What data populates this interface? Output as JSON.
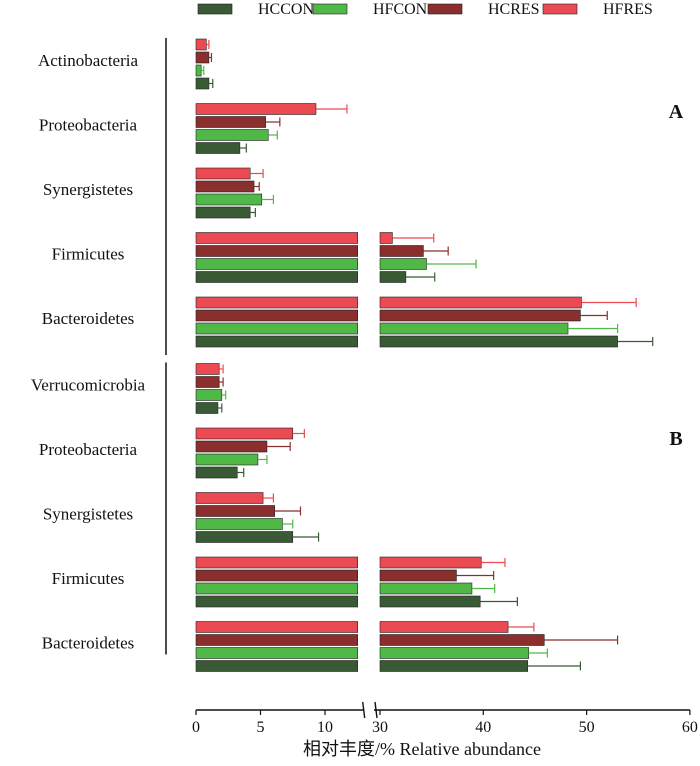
{
  "chart_data": {
    "type": "bar",
    "orientation": "horizontal",
    "xlabel": "相对丰度/%   Relative abundance",
    "x_axis_break": [
      13,
      30
    ],
    "x_ticks_left": [
      0,
      5,
      10
    ],
    "x_ticks_right": [
      30,
      40,
      50,
      60
    ],
    "legend": [
      "HCCON",
      "HFCON",
      "HCRES",
      "HFRES"
    ],
    "colors": {
      "HCCON": "#3a5a36",
      "HFCON": "#4fb847",
      "HCRES": "#8a2e2e",
      "HFRES": "#ec4a52"
    },
    "panels": [
      {
        "label": "A",
        "groups": [
          {
            "name": "Actinobacteria",
            "values": {
              "HCCON": 1.0,
              "HFCON": 0.4,
              "HCRES": 1.0,
              "HFRES": 0.8
            },
            "errors": {
              "HCCON": 0.3,
              "HFCON": 0.2,
              "HCRES": 0.2,
              "HFRES": 0.2
            }
          },
          {
            "name": "Proteobacteria",
            "values": {
              "HCCON": 3.4,
              "HFCON": 5.6,
              "HCRES": 5.4,
              "HFRES": 9.3
            },
            "errors": {
              "HCCON": 0.5,
              "HFCON": 0.7,
              "HCRES": 1.1,
              "HFRES": 2.4
            }
          },
          {
            "name": "Synergistetes",
            "values": {
              "HCCON": 4.2,
              "HFCON": 5.1,
              "HCRES": 4.5,
              "HFRES": 4.2
            },
            "errors": {
              "HCCON": 0.4,
              "HFCON": 0.9,
              "HCRES": 0.4,
              "HFRES": 1.0
            }
          },
          {
            "name": "Firmicutes",
            "values": {
              "HCCON": 32.5,
              "HFCON": 34.5,
              "HCRES": 34.2,
              "HFRES": 31.2
            },
            "errors": {
              "HCCON": 2.8,
              "HFCON": 4.8,
              "HCRES": 2.4,
              "HFRES": 4.0
            }
          },
          {
            "name": "Bacteroidetes",
            "values": {
              "HCCON": 53.0,
              "HFCON": 48.2,
              "HCRES": 49.4,
              "HFRES": 49.5
            },
            "errors": {
              "HCCON": 3.4,
              "HFCON": 4.8,
              "HCRES": 2.6,
              "HFRES": 5.3
            }
          }
        ]
      },
      {
        "label": "B",
        "groups": [
          {
            "name": "Verrucomicrobia",
            "values": {
              "HCCON": 1.7,
              "HFCON": 2.0,
              "HCRES": 1.8,
              "HFRES": 1.8
            },
            "errors": {
              "HCCON": 0.3,
              "HFCON": 0.3,
              "HCRES": 0.3,
              "HFRES": 0.3
            }
          },
          {
            "name": "Proteobacteria",
            "values": {
              "HCCON": 3.2,
              "HFCON": 4.8,
              "HCRES": 5.5,
              "HFRES": 7.5
            },
            "errors": {
              "HCCON": 0.5,
              "HFCON": 0.7,
              "HCRES": 1.8,
              "HFRES": 0.9
            }
          },
          {
            "name": "Synergistetes",
            "values": {
              "HCCON": 7.5,
              "HFCON": 6.7,
              "HCRES": 6.1,
              "HFRES": 5.2
            },
            "errors": {
              "HCCON": 2.0,
              "HFCON": 0.8,
              "HCRES": 2.0,
              "HFRES": 0.8
            }
          },
          {
            "name": "Firmicutes",
            "values": {
              "HCCON": 39.7,
              "HFCON": 38.9,
              "HCRES": 37.4,
              "HFRES": 39.8
            },
            "errors": {
              "HCCON": 3.6,
              "HFCON": 2.2,
              "HCRES": 3.6,
              "HFRES": 2.3
            }
          },
          {
            "name": "Bacteroidetes",
            "values": {
              "HCCON": 44.3,
              "HFCON": 44.4,
              "HCRES": 45.9,
              "HFRES": 42.4
            },
            "errors": {
              "HCCON": 5.1,
              "HFCON": 1.8,
              "HCRES": 7.1,
              "HFRES": 2.5
            }
          }
        ]
      }
    ]
  }
}
